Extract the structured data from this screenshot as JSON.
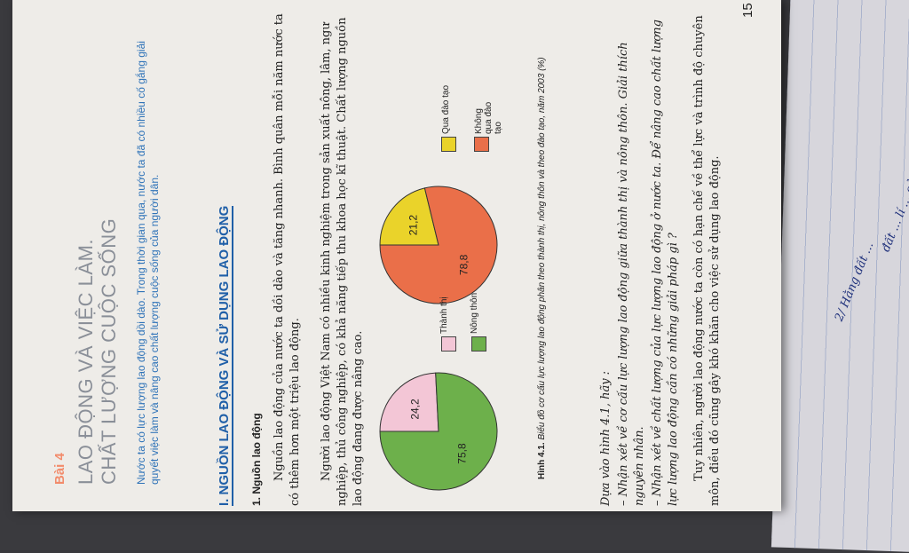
{
  "page_number": "15",
  "lesson": {
    "number": "Bài 4",
    "title_line1": "LAO ĐỘNG VÀ VIỆC LÀM.",
    "title_line2": "CHẤT LƯỢNG CUỘC SỐNG",
    "intro": "Nước ta có lực lượng lao động dồi dào. Trong thời gian qua, nước ta đã có nhiều cố gắng giải quyết việc làm và nâng cao chất lượng cuộc sống của người dân."
  },
  "section": {
    "heading": "I. NGUỒN LAO ĐỘNG VÀ SỬ DỤNG LAO ĐỘNG",
    "subheading": "1. Nguồn lao động",
    "para1": "Nguồn lao động của nước ta dồi dào và tăng nhanh. Bình quân mỗi năm nước ta có thêm hơn một triệu lao động.",
    "para2": "Người lao động Việt Nam có nhiều kinh nghiệm trong sản xuất nông, lâm, ngư nghiệp, thủ công nghiệp, có khả năng tiếp thu khoa học kĩ thuật. Chất lượng nguồn lao động đang được nâng cao."
  },
  "figure": {
    "caption_label": "Hình 4.1.",
    "caption_text": "Biểu đồ cơ cấu lực lượng lao động phân theo thành thị, nông thôn và theo đào tạo, năm 2003 (%)"
  },
  "questions": {
    "intro": "Dựa vào hình 4.1, hãy :",
    "q1": "– Nhận xét về cơ cấu lực lượng lao động giữa thành thị và nông thôn. Giải thích nguyên nhân.",
    "q2": "– Nhận xét về chất lượng của lực lượng lao động ở nước ta. Để nâng cao chất lượng lực lượng lao động cần có những giải pháp gì ?",
    "para3": "Tuy nhiên, người lao động nước ta còn có hạn chế về thể lực và trình độ chuyên môn, điều đó cũng gây khó khăn cho việc sử dụng lao động."
  },
  "chart_data": [
    {
      "type": "pie",
      "categories": [
        "Thành thị",
        "Nông thôn"
      ],
      "values": [
        24.2,
        75.8
      ],
      "labels": [
        "24,2",
        "75,8"
      ],
      "colors": [
        "#f3c6d6",
        "#6db04b"
      ],
      "legend": "right"
    },
    {
      "type": "pie",
      "categories": [
        "Qua đào tạo",
        "Không qua đào tạo"
      ],
      "values": [
        21.2,
        78.8
      ],
      "labels": [
        "21,2",
        "78,8"
      ],
      "colors": [
        "#ead32a",
        "#ea6f49"
      ],
      "legend": "right"
    }
  ],
  "notebook": {
    "line1": "2/ Hằng đất ...",
    "line2": "đất ... lí ... của"
  }
}
